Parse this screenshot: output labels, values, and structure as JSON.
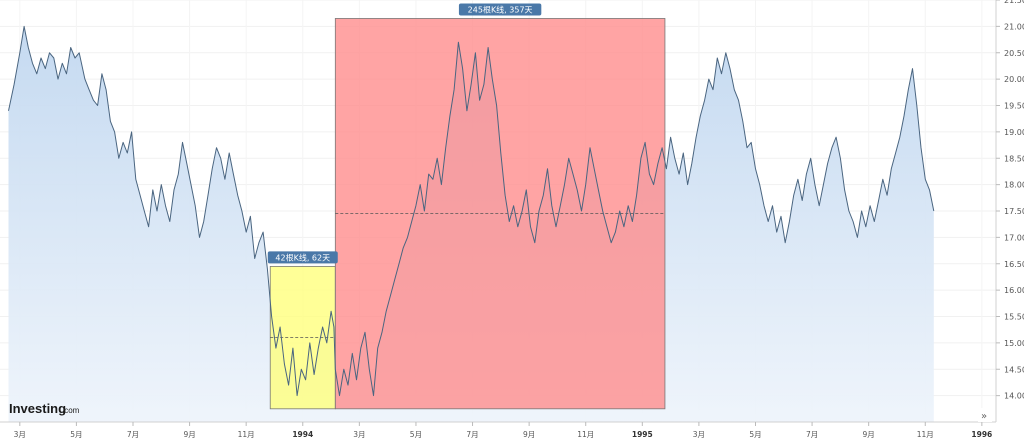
{
  "chart_data": {
    "type": "area",
    "title": "",
    "xlabel": "",
    "ylabel": "",
    "ylim": [
      13.5,
      21.5
    ],
    "grid": true,
    "legend": "none",
    "line_color": "#4a6580",
    "area_color": "#cfe0f3",
    "x_ticks": [
      {
        "label": "3月",
        "x": 0.4,
        "bold": false
      },
      {
        "label": "5月",
        "x": 2.4,
        "bold": false
      },
      {
        "label": "7月",
        "x": 4.4,
        "bold": false
      },
      {
        "label": "9月",
        "x": 6.4,
        "bold": false
      },
      {
        "label": "11月",
        "x": 8.4,
        "bold": false
      },
      {
        "label": "1994",
        "x": 10.4,
        "bold": true
      },
      {
        "label": "3月",
        "x": 12.4,
        "bold": false
      },
      {
        "label": "5月",
        "x": 14.4,
        "bold": false
      },
      {
        "label": "7月",
        "x": 16.4,
        "bold": false
      },
      {
        "label": "9月",
        "x": 18.4,
        "bold": false
      },
      {
        "label": "11月",
        "x": 20.4,
        "bold": false
      },
      {
        "label": "1995",
        "x": 22.4,
        "bold": true
      },
      {
        "label": "3月",
        "x": 24.4,
        "bold": false
      },
      {
        "label": "5月",
        "x": 26.4,
        "bold": false
      },
      {
        "label": "7月",
        "x": 28.4,
        "bold": false
      },
      {
        "label": "9月",
        "x": 30.4,
        "bold": false
      },
      {
        "label": "11月",
        "x": 32.4,
        "bold": false
      },
      {
        "label": "1996",
        "x": 34.4,
        "bold": true
      }
    ],
    "y_ticks": [
      14.0,
      14.5,
      15.0,
      15.5,
      16.0,
      16.5,
      17.0,
      17.5,
      18.0,
      18.5,
      19.0,
      19.5,
      20.0,
      20.5,
      21.0,
      21.5
    ],
    "series": [
      {
        "values": [
          [
            0.0,
            19.4
          ],
          [
            0.2,
            19.9
          ],
          [
            0.4,
            20.5
          ],
          [
            0.55,
            21.0
          ],
          [
            0.7,
            20.6
          ],
          [
            0.85,
            20.3
          ],
          [
            1.0,
            20.1
          ],
          [
            1.15,
            20.4
          ],
          [
            1.3,
            20.2
          ],
          [
            1.45,
            20.5
          ],
          [
            1.6,
            20.4
          ],
          [
            1.75,
            20.0
          ],
          [
            1.9,
            20.3
          ],
          [
            2.05,
            20.1
          ],
          [
            2.2,
            20.6
          ],
          [
            2.35,
            20.4
          ],
          [
            2.5,
            20.5
          ],
          [
            2.7,
            20.0
          ],
          [
            2.85,
            19.8
          ],
          [
            3.0,
            19.6
          ],
          [
            3.15,
            19.5
          ],
          [
            3.3,
            20.1
          ],
          [
            3.45,
            19.8
          ],
          [
            3.6,
            19.2
          ],
          [
            3.75,
            19.0
          ],
          [
            3.9,
            18.5
          ],
          [
            4.05,
            18.8
          ],
          [
            4.2,
            18.6
          ],
          [
            4.35,
            19.0
          ],
          [
            4.5,
            18.1
          ],
          [
            4.65,
            17.8
          ],
          [
            4.8,
            17.5
          ],
          [
            4.95,
            17.2
          ],
          [
            5.1,
            17.9
          ],
          [
            5.25,
            17.5
          ],
          [
            5.4,
            18.0
          ],
          [
            5.55,
            17.6
          ],
          [
            5.7,
            17.3
          ],
          [
            5.85,
            17.9
          ],
          [
            6.0,
            18.2
          ],
          [
            6.15,
            18.8
          ],
          [
            6.3,
            18.4
          ],
          [
            6.45,
            18.0
          ],
          [
            6.6,
            17.6
          ],
          [
            6.75,
            17.0
          ],
          [
            6.9,
            17.3
          ],
          [
            7.05,
            17.8
          ],
          [
            7.2,
            18.3
          ],
          [
            7.35,
            18.7
          ],
          [
            7.5,
            18.5
          ],
          [
            7.65,
            18.1
          ],
          [
            7.8,
            18.6
          ],
          [
            7.95,
            18.2
          ],
          [
            8.1,
            17.8
          ],
          [
            8.25,
            17.5
          ],
          [
            8.4,
            17.1
          ],
          [
            8.55,
            17.4
          ],
          [
            8.7,
            16.6
          ],
          [
            8.85,
            16.9
          ],
          [
            9.0,
            17.1
          ],
          [
            9.15,
            16.4
          ],
          [
            9.3,
            15.5
          ],
          [
            9.45,
            14.9
          ],
          [
            9.6,
            15.3
          ],
          [
            9.75,
            14.6
          ],
          [
            9.9,
            14.2
          ],
          [
            10.05,
            14.9
          ],
          [
            10.2,
            14.0
          ],
          [
            10.35,
            14.5
          ],
          [
            10.5,
            14.3
          ],
          [
            10.65,
            15.0
          ],
          [
            10.8,
            14.4
          ],
          [
            10.95,
            14.9
          ],
          [
            11.1,
            15.3
          ],
          [
            11.25,
            15.0
          ],
          [
            11.4,
            15.6
          ],
          [
            11.5,
            15.3
          ],
          [
            11.55,
            14.5
          ],
          [
            11.7,
            14.0
          ],
          [
            11.85,
            14.5
          ],
          [
            12.0,
            14.2
          ],
          [
            12.15,
            14.8
          ],
          [
            12.3,
            14.3
          ],
          [
            12.45,
            14.9
          ],
          [
            12.6,
            15.2
          ],
          [
            12.75,
            14.5
          ],
          [
            12.9,
            14.0
          ],
          [
            13.05,
            14.9
          ],
          [
            13.2,
            15.2
          ],
          [
            13.35,
            15.6
          ],
          [
            13.5,
            15.9
          ],
          [
            13.65,
            16.2
          ],
          [
            13.8,
            16.5
          ],
          [
            13.95,
            16.8
          ],
          [
            14.1,
            17.0
          ],
          [
            14.25,
            17.3
          ],
          [
            14.4,
            17.6
          ],
          [
            14.55,
            18.0
          ],
          [
            14.7,
            17.5
          ],
          [
            14.85,
            18.2
          ],
          [
            15.0,
            18.1
          ],
          [
            15.15,
            18.5
          ],
          [
            15.3,
            18.0
          ],
          [
            15.45,
            18.7
          ],
          [
            15.6,
            19.3
          ],
          [
            15.75,
            19.8
          ],
          [
            15.9,
            20.7
          ],
          [
            16.05,
            20.2
          ],
          [
            16.2,
            19.4
          ],
          [
            16.35,
            19.9
          ],
          [
            16.5,
            20.5
          ],
          [
            16.65,
            19.6
          ],
          [
            16.8,
            19.9
          ],
          [
            16.95,
            20.6
          ],
          [
            17.1,
            20.0
          ],
          [
            17.25,
            19.5
          ],
          [
            17.4,
            18.6
          ],
          [
            17.55,
            17.8
          ],
          [
            17.7,
            17.3
          ],
          [
            17.85,
            17.6
          ],
          [
            18.0,
            17.2
          ],
          [
            18.15,
            17.5
          ],
          [
            18.3,
            17.9
          ],
          [
            18.45,
            17.2
          ],
          [
            18.6,
            16.9
          ],
          [
            18.75,
            17.5
          ],
          [
            18.9,
            17.8
          ],
          [
            19.05,
            18.3
          ],
          [
            19.2,
            17.6
          ],
          [
            19.35,
            17.2
          ],
          [
            19.5,
            17.6
          ],
          [
            19.65,
            18.0
          ],
          [
            19.8,
            18.5
          ],
          [
            19.95,
            18.2
          ],
          [
            20.1,
            17.9
          ],
          [
            20.25,
            17.5
          ],
          [
            20.4,
            18.0
          ],
          [
            20.55,
            18.7
          ],
          [
            20.7,
            18.3
          ],
          [
            20.85,
            17.9
          ],
          [
            21.0,
            17.5
          ],
          [
            21.15,
            17.2
          ],
          [
            21.3,
            16.9
          ],
          [
            21.45,
            17.1
          ],
          [
            21.6,
            17.5
          ],
          [
            21.75,
            17.2
          ],
          [
            21.9,
            17.6
          ],
          [
            22.05,
            17.3
          ],
          [
            22.2,
            17.8
          ],
          [
            22.35,
            18.5
          ],
          [
            22.5,
            18.8
          ],
          [
            22.65,
            18.2
          ],
          [
            22.8,
            18.0
          ],
          [
            22.95,
            18.4
          ],
          [
            23.1,
            18.7
          ],
          [
            23.25,
            18.3
          ],
          [
            23.4,
            18.9
          ],
          [
            23.55,
            18.5
          ],
          [
            23.7,
            18.2
          ],
          [
            23.85,
            18.6
          ],
          [
            24.0,
            18.0
          ],
          [
            24.15,
            18.4
          ],
          [
            24.3,
            18.9
          ],
          [
            24.45,
            19.3
          ],
          [
            24.6,
            19.6
          ],
          [
            24.75,
            20.0
          ],
          [
            24.9,
            19.8
          ],
          [
            25.05,
            20.4
          ],
          [
            25.2,
            20.1
          ],
          [
            25.35,
            20.5
          ],
          [
            25.5,
            20.2
          ],
          [
            25.65,
            19.8
          ],
          [
            25.8,
            19.6
          ],
          [
            25.95,
            19.2
          ],
          [
            26.1,
            18.7
          ],
          [
            26.25,
            18.8
          ],
          [
            26.4,
            18.3
          ],
          [
            26.55,
            18.0
          ],
          [
            26.7,
            17.6
          ],
          [
            26.85,
            17.3
          ],
          [
            27.0,
            17.6
          ],
          [
            27.15,
            17.1
          ],
          [
            27.3,
            17.4
          ],
          [
            27.45,
            16.9
          ],
          [
            27.6,
            17.3
          ],
          [
            27.75,
            17.8
          ],
          [
            27.9,
            18.1
          ],
          [
            28.05,
            17.7
          ],
          [
            28.2,
            18.2
          ],
          [
            28.35,
            18.5
          ],
          [
            28.5,
            18.0
          ],
          [
            28.65,
            17.6
          ],
          [
            28.8,
            18.0
          ],
          [
            28.95,
            18.4
          ],
          [
            29.1,
            18.7
          ],
          [
            29.25,
            18.9
          ],
          [
            29.4,
            18.5
          ],
          [
            29.55,
            17.9
          ],
          [
            29.7,
            17.5
          ],
          [
            29.85,
            17.3
          ],
          [
            30.0,
            17.0
          ],
          [
            30.15,
            17.5
          ],
          [
            30.3,
            17.2
          ],
          [
            30.45,
            17.6
          ],
          [
            30.6,
            17.3
          ],
          [
            30.75,
            17.7
          ],
          [
            30.9,
            18.1
          ],
          [
            31.05,
            17.8
          ],
          [
            31.2,
            18.3
          ],
          [
            31.35,
            18.6
          ],
          [
            31.5,
            18.9
          ],
          [
            31.65,
            19.3
          ],
          [
            31.8,
            19.8
          ],
          [
            31.95,
            20.2
          ],
          [
            32.1,
            19.5
          ],
          [
            32.25,
            18.7
          ],
          [
            32.4,
            18.1
          ],
          [
            32.55,
            17.9
          ],
          [
            32.7,
            17.5
          ]
        ]
      }
    ],
    "annotations": [
      {
        "label": "42根K线, 62天",
        "x_start": 9.25,
        "x_end": 11.55,
        "y_top": 16.45,
        "y_bottom": 13.75,
        "midline": 15.1,
        "fill": "#ffff7a"
      },
      {
        "label": "245根K线, 357天",
        "x_start": 11.55,
        "x_end": 23.2,
        "y_top": 21.15,
        "y_bottom": 13.75,
        "midline": 17.45,
        "fill": "#ff8a8a"
      }
    ]
  },
  "branding": {
    "logo_main": "Investing",
    "logo_suffix": ".com"
  },
  "controls": {
    "scroll_right_glyph": "»"
  }
}
